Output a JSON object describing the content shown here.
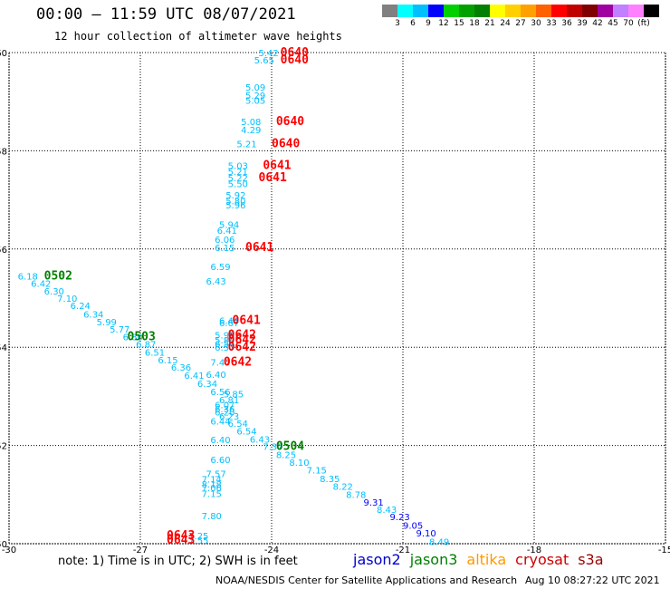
{
  "title": "00:00 – 11:59 UTC 08/07/2021",
  "subtitle": "12 hour collection of altimeter wave heights",
  "colorbar": {
    "colors": [
      "#808080",
      "#00ffff",
      "#00bfff",
      "#0000ff",
      "#00d000",
      "#00a000",
      "#008000",
      "#ffff00",
      "#ffd000",
      "#ffa000",
      "#ff6000",
      "#ff0000",
      "#c00000",
      "#800000",
      "#a000a0",
      "#c080ff",
      "#ff80ff",
      "#000000"
    ],
    "labels": [
      "3",
      "6",
      "9",
      "12",
      "15",
      "18",
      "21",
      "24",
      "27",
      "30",
      "33",
      "36",
      "39",
      "42",
      "45",
      "70",
      "(ft)"
    ]
  },
  "note": "note: 1) Time is in UTC; 2) SWH is in feet",
  "legend": [
    {
      "name": "jason2",
      "color": "#0000cc"
    },
    {
      "name": "jason3",
      "color": "#008000"
    },
    {
      "name": "altika",
      "color": "#ff9900"
    },
    {
      "name": "cryosat",
      "color": "#cc0000"
    },
    {
      "name": "s3a",
      "color": "#990000"
    }
  ],
  "credit": "NOAA/NESDIS Center for Satellite Applications and Research",
  "timestamp": "Aug 10 08:27:22 UTC 2021",
  "chart_data": {
    "type": "scatter",
    "xlim": [
      -30,
      -15
    ],
    "ylim": [
      50,
      60
    ],
    "x_ticks": [
      -30,
      -27,
      -24,
      -21,
      -18,
      -15
    ],
    "y_ticks": [
      50,
      52,
      54,
      56,
      58,
      60
    ],
    "grid": true,
    "series": [
      {
        "kind": "swh",
        "points": [
          {
            "x": -24.3,
            "y": 60.0,
            "label": "5.42",
            "color": "#00bfff"
          },
          {
            "x": -24.4,
            "y": 59.85,
            "label": "5.65",
            "color": "#00bfff"
          },
          {
            "x": -24.6,
            "y": 59.3,
            "label": "5.09",
            "color": "#00bfff"
          },
          {
            "x": -24.6,
            "y": 59.13,
            "label": "5.29",
            "color": "#00bfff"
          },
          {
            "x": -24.6,
            "y": 59.03,
            "label": "5.05",
            "color": "#00bfff"
          },
          {
            "x": -24.7,
            "y": 58.6,
            "label": "5.08",
            "color": "#00bfff"
          },
          {
            "x": -24.7,
            "y": 58.43,
            "label": "4.29",
            "color": "#00bfff"
          },
          {
            "x": -24.8,
            "y": 58.15,
            "label": "5.21",
            "color": "#00bfff"
          },
          {
            "x": -25.0,
            "y": 57.7,
            "label": "5.03",
            "color": "#00bfff"
          },
          {
            "x": -25.0,
            "y": 57.58,
            "label": "5.21",
            "color": "#00bfff"
          },
          {
            "x": -25.0,
            "y": 57.45,
            "label": "5.22",
            "color": "#00bfff"
          },
          {
            "x": -25.0,
            "y": 57.33,
            "label": "5.50",
            "color": "#00bfff"
          },
          {
            "x": -25.05,
            "y": 57.1,
            "label": "5.92",
            "color": "#00bfff"
          },
          {
            "x": -25.05,
            "y": 56.98,
            "label": "5.80",
            "color": "#00bfff"
          },
          {
            "x": -25.05,
            "y": 56.9,
            "label": "5.96",
            "color": "#00bfff"
          },
          {
            "x": -25.2,
            "y": 56.5,
            "label": "5.94",
            "color": "#00bfff"
          },
          {
            "x": -25.25,
            "y": 56.38,
            "label": "6.41",
            "color": "#00bfff"
          },
          {
            "x": -25.3,
            "y": 56.2,
            "label": "6.06",
            "color": "#00bfff"
          },
          {
            "x": -25.3,
            "y": 56.03,
            "label": "6.15",
            "color": "#00bfff"
          },
          {
            "x": -25.4,
            "y": 55.65,
            "label": "6.59",
            "color": "#00bfff"
          },
          {
            "x": -25.5,
            "y": 55.35,
            "label": "6.43",
            "color": "#00bfff"
          },
          {
            "x": -29.8,
            "y": 55.45,
            "label": "6.18",
            "color": "#00bfff"
          },
          {
            "x": -29.5,
            "y": 55.3,
            "label": "6.42",
            "color": "#00bfff"
          },
          {
            "x": -29.2,
            "y": 55.15,
            "label": "6.30",
            "color": "#00bfff"
          },
          {
            "x": -28.9,
            "y": 55.0,
            "label": "7.10",
            "color": "#00bfff"
          },
          {
            "x": -28.6,
            "y": 54.85,
            "label": "6.24",
            "color": "#00bfff"
          },
          {
            "x": -28.3,
            "y": 54.68,
            "label": "6.34",
            "color": "#00bfff"
          },
          {
            "x": -28.0,
            "y": 54.52,
            "label": "5.99",
            "color": "#00bfff"
          },
          {
            "x": -27.7,
            "y": 54.37,
            "label": "5.77",
            "color": "#00bfff"
          },
          {
            "x": -27.4,
            "y": 54.22,
            "label": "6.80",
            "color": "#00bfff"
          },
          {
            "x": -27.1,
            "y": 54.07,
            "label": "6.87",
            "color": "#00bfff"
          },
          {
            "x": -26.9,
            "y": 53.9,
            "label": "6.51",
            "color": "#00bfff"
          },
          {
            "x": -26.6,
            "y": 53.75,
            "label": "6.15",
            "color": "#00bfff"
          },
          {
            "x": -26.3,
            "y": 53.6,
            "label": "6.36",
            "color": "#00bfff"
          },
          {
            "x": -26.0,
            "y": 53.43,
            "label": "6.41",
            "color": "#00bfff"
          },
          {
            "x": -25.7,
            "y": 53.27,
            "label": "6.34",
            "color": "#00bfff"
          },
          {
            "x": -25.4,
            "y": 53.1,
            "label": "6.56",
            "color": "#00bfff"
          },
          {
            "x": -25.1,
            "y": 53.05,
            "label": "5.85",
            "color": "#00bfff"
          },
          {
            "x": -25.2,
            "y": 52.93,
            "label": "6.81",
            "color": "#00bfff"
          },
          {
            "x": -25.3,
            "y": 52.83,
            "label": "6.07",
            "color": "#00bfff"
          },
          {
            "x": -25.3,
            "y": 52.75,
            "label": "6.36",
            "color": "#00bfff"
          },
          {
            "x": -25.3,
            "y": 52.68,
            "label": "6.20",
            "color": "#00bfff"
          },
          {
            "x": -25.2,
            "y": 52.6,
            "label": "6.23",
            "color": "#00bfff"
          },
          {
            "x": -25.4,
            "y": 52.5,
            "label": "6.44",
            "color": "#00bfff"
          },
          {
            "x": -25.0,
            "y": 52.45,
            "label": "6.54",
            "color": "#00bfff"
          },
          {
            "x": -24.8,
            "y": 52.3,
            "label": "6.54",
            "color": "#00bfff"
          },
          {
            "x": -24.5,
            "y": 52.13,
            "label": "6.43",
            "color": "#00bfff"
          },
          {
            "x": -24.2,
            "y": 51.98,
            "label": "7.37",
            "color": "#00bfff"
          },
          {
            "x": -23.9,
            "y": 51.82,
            "label": "8.25",
            "color": "#00bfff"
          },
          {
            "x": -23.6,
            "y": 51.66,
            "label": "8.10",
            "color": "#00bfff"
          },
          {
            "x": -23.2,
            "y": 51.5,
            "label": "7.15",
            "color": "#00bfff"
          },
          {
            "x": -22.9,
            "y": 51.33,
            "label": "8.35",
            "color": "#00bfff"
          },
          {
            "x": -22.6,
            "y": 51.17,
            "label": "8.22",
            "color": "#00bfff"
          },
          {
            "x": -22.3,
            "y": 51.01,
            "label": "8.78",
            "color": "#00bfff"
          },
          {
            "x": -21.9,
            "y": 50.85,
            "label": "9.31",
            "color": "#0000ff"
          },
          {
            "x": -21.6,
            "y": 50.7,
            "label": "8.43",
            "color": "#00bfff"
          },
          {
            "x": -21.3,
            "y": 50.55,
            "label": "9.23",
            "color": "#0000ff"
          },
          {
            "x": -21.0,
            "y": 50.38,
            "label": "9.05",
            "color": "#0000ff"
          },
          {
            "x": -20.7,
            "y": 50.22,
            "label": "9.10",
            "color": "#0000ff"
          },
          {
            "x": -20.4,
            "y": 50.05,
            "label": "8.49",
            "color": "#00bfff"
          },
          {
            "x": -25.4,
            "y": 52.12,
            "label": "6.40",
            "color": "#00bfff"
          },
          {
            "x": -25.4,
            "y": 51.72,
            "label": "6.60",
            "color": "#00bfff"
          },
          {
            "x": -25.5,
            "y": 51.43,
            "label": "7.57",
            "color": "#00bfff"
          },
          {
            "x": -25.6,
            "y": 51.32,
            "label": "7.14",
            "color": "#00bfff"
          },
          {
            "x": -25.6,
            "y": 51.22,
            "label": "8.18",
            "color": "#00bfff"
          },
          {
            "x": -25.6,
            "y": 51.14,
            "label": "7.06",
            "color": "#00bfff"
          },
          {
            "x": -25.6,
            "y": 51.02,
            "label": "7.15",
            "color": "#00bfff"
          },
          {
            "x": -25.6,
            "y": 50.57,
            "label": "7.80",
            "color": "#00bfff"
          },
          {
            "x": -25.9,
            "y": 50.17,
            "label": "7.25",
            "color": "#00bfff"
          },
          {
            "x": -25.9,
            "y": 50.07,
            "label": "7.55",
            "color": "#00bfff"
          },
          {
            "x": -25.2,
            "y": 54.55,
            "label": "6.44",
            "color": "#00bfff"
          },
          {
            "x": -25.2,
            "y": 54.5,
            "label": "6.67",
            "color": "#00bfff"
          },
          {
            "x": -25.3,
            "y": 54.25,
            "label": "5.95",
            "color": "#00bfff"
          },
          {
            "x": -25.3,
            "y": 54.15,
            "label": "5.89",
            "color": "#00bfff"
          },
          {
            "x": -25.3,
            "y": 54.08,
            "label": "6.54",
            "color": "#00bfff"
          },
          {
            "x": -25.3,
            "y": 54.0,
            "label": "6.57",
            "color": "#00bfff"
          },
          {
            "x": -25.4,
            "y": 53.7,
            "label": "7.47",
            "color": "#00bfff"
          },
          {
            "x": -25.5,
            "y": 53.45,
            "label": "6.40",
            "color": "#00bfff"
          }
        ]
      },
      {
        "kind": "time",
        "points": [
          {
            "x": -23.8,
            "y": 60.0,
            "label": "0640",
            "color": "#ff0000"
          },
          {
            "x": -23.8,
            "y": 59.85,
            "label": "0640",
            "color": "#ff0000"
          },
          {
            "x": -23.9,
            "y": 58.6,
            "label": "0640",
            "color": "#ff0000"
          },
          {
            "x": -24.0,
            "y": 58.15,
            "label": "0640",
            "color": "#ff0000"
          },
          {
            "x": -24.2,
            "y": 57.7,
            "label": "0641",
            "color": "#ff0000"
          },
          {
            "x": -24.3,
            "y": 57.45,
            "label": "0641",
            "color": "#ff0000"
          },
          {
            "x": -24.6,
            "y": 56.03,
            "label": "0641",
            "color": "#ff0000"
          },
          {
            "x": -24.9,
            "y": 54.55,
            "label": "0641",
            "color": "#ff0000"
          },
          {
            "x": -25.0,
            "y": 54.25,
            "label": "0642",
            "color": "#ff0000"
          },
          {
            "x": -25.0,
            "y": 54.15,
            "label": "0642",
            "color": "#ff0000"
          },
          {
            "x": -25.0,
            "y": 54.0,
            "label": "0642",
            "color": "#ff0000"
          },
          {
            "x": -25.1,
            "y": 53.7,
            "label": "0642",
            "color": "#ff0000"
          },
          {
            "x": -26.4,
            "y": 50.17,
            "label": "0643",
            "color": "#ff0000"
          },
          {
            "x": -26.4,
            "y": 50.07,
            "label": "0643",
            "color": "#ff0000"
          },
          {
            "x": -29.2,
            "y": 55.45,
            "label": "0502",
            "color": "#008000"
          },
          {
            "x": -27.3,
            "y": 54.22,
            "label": "0503",
            "color": "#008000"
          },
          {
            "x": -23.9,
            "y": 51.98,
            "label": "0504",
            "color": "#008000"
          }
        ]
      }
    ]
  }
}
